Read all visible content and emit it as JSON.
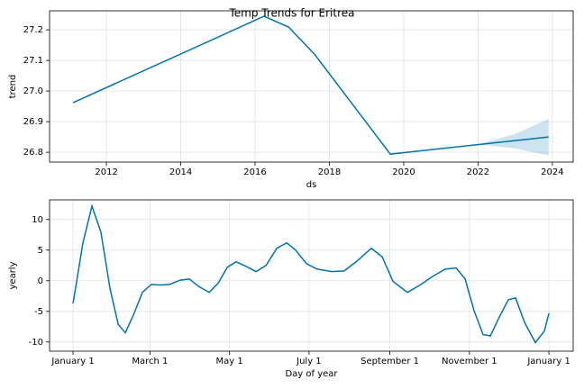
{
  "chart_data": [
    {
      "type": "line",
      "title": "Temp Trends for Eritrea",
      "xlabel": "ds",
      "ylabel": "trend",
      "x": [
        2011.1,
        2016.24,
        2016.9,
        2017.6,
        2019.64,
        2023.9
      ],
      "values": [
        26.962,
        27.244,
        27.209,
        27.12,
        26.794,
        26.85
      ],
      "color": "#0072B2",
      "interval": {
        "x": [
          2022.0,
          2023.0,
          2023.9
        ],
        "lower": [
          26.826,
          26.812,
          26.79
        ],
        "upper": [
          26.826,
          26.86,
          26.909
        ],
        "color": "#0072B2",
        "opacity": 0.2
      },
      "xlim": [
        2010.47,
        2024.56
      ],
      "ylim": [
        26.768,
        27.262
      ],
      "xticks": [
        2012,
        2014,
        2016,
        2018,
        2020,
        2022,
        2024
      ],
      "yticks": [
        {
          "value": 26.8,
          "label": "26.8"
        },
        {
          "value": 26.9,
          "label": "26.9"
        },
        {
          "value": 27.0,
          "label": "27.0"
        },
        {
          "value": 27.1,
          "label": "27.1"
        },
        {
          "value": 27.2,
          "label": "27.2"
        }
      ],
      "grid": true
    },
    {
      "type": "line",
      "xlabel": "Day of year",
      "ylabel": "yearly",
      "x": [
        0,
        7.6,
        14.5,
        21.4,
        28.3,
        34.6,
        40.1,
        46.3,
        53.2,
        60.1,
        67,
        74,
        82.3,
        89.2,
        96.1,
        104.4,
        111.3,
        118.3,
        125.1,
        132.1,
        140.4,
        148,
        156.3,
        163.9,
        170.7,
        179,
        187.3,
        198.4,
        208,
        217.7,
        228.8,
        237.1,
        245.4,
        256.5,
        266.2,
        275.8,
        285.5,
        293.8,
        300.7,
        307.6,
        314.5,
        320.1,
        327,
        333.9,
        339.4,
        346.3,
        354.6,
        361.5,
        365
      ],
      "values": [
        -3.7,
        6.2,
        12.2,
        7.9,
        -1.2,
        -7.1,
        -8.5,
        -5.6,
        -1.9,
        -0.6,
        -0.7,
        -0.6,
        0.1,
        0.3,
        -0.9,
        -1.9,
        -0.4,
        2.2,
        3.1,
        2.4,
        1.5,
        2.5,
        5.3,
        6.2,
        5.0,
        2.8,
        1.9,
        1.5,
        1.6,
        3.2,
        5.3,
        3.9,
        -0.1,
        -1.9,
        -0.7,
        0.7,
        1.9,
        2.1,
        0.3,
        -4.9,
        -8.8,
        -9.0,
        -5.9,
        -3.1,
        -2.8,
        -6.8,
        -10.1,
        -8.2,
        -5.3
      ],
      "color": "#0072B2",
      "xlim": [
        -18,
        383.6
      ],
      "ylim": [
        -11.5,
        13.2
      ],
      "xticks": [
        {
          "value": 0,
          "label": "January 1"
        },
        {
          "value": 59,
          "label": "March 1"
        },
        {
          "value": 120,
          "label": "May 1"
        },
        {
          "value": 181,
          "label": "July 1"
        },
        {
          "value": 243,
          "label": "September 1"
        },
        {
          "value": 304,
          "label": "November 1"
        },
        {
          "value": 365,
          "label": "January 1"
        }
      ],
      "yticks": [
        -10,
        -5,
        0,
        5,
        10
      ],
      "grid": true
    }
  ]
}
